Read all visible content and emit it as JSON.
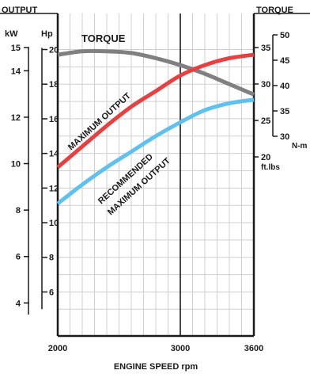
{
  "chart_data": {
    "type": "line",
    "title_left": "OUTPUT",
    "title_right": "TORQUE",
    "xlabel": "ENGINE SPEED  rpm",
    "xlim": [
      2000,
      3600
    ],
    "x_ticks": [
      "2000",
      "3000",
      "3600"
    ],
    "x_ticks_values": [
      2000,
      3000,
      3600
    ],
    "reference_line_x": 3000,
    "grid": true,
    "axes": {
      "kw": {
        "label": "kW",
        "range": [
          3.5,
          15
        ],
        "ticks": [
          "4",
          "6",
          "8",
          "10",
          "12",
          "14",
          "15"
        ],
        "tick_values": [
          4,
          6,
          8,
          10,
          12,
          14,
          15
        ]
      },
      "hp": {
        "label": "Hp",
        "range": [
          4.7,
          20.1
        ],
        "ticks": [
          "6",
          "8",
          "10",
          "12",
          "14",
          "16",
          "18",
          "20"
        ],
        "tick_values": [
          6,
          8,
          10,
          12,
          14,
          16,
          18,
          20
        ]
      },
      "nm": {
        "label": "N-m",
        "range": [
          28,
          51
        ],
        "ticks": [
          "30",
          "35",
          "40",
          "45",
          "50"
        ],
        "tick_values": [
          30,
          35,
          40,
          45,
          50
        ]
      },
      "ftlbs": {
        "label": "ft.lbs",
        "range": [
          20,
          37.5
        ],
        "ticks": [
          "20",
          "25",
          "30",
          "35"
        ],
        "tick_values": [
          20,
          25,
          30,
          35
        ]
      }
    },
    "series": [
      {
        "name": "TORQUE",
        "axis": "hp",
        "color": "#808080",
        "x": [
          2000,
          2200,
          2400,
          2600,
          2800,
          3000,
          3200,
          3400,
          3600
        ],
        "y": [
          19.7,
          19.9,
          19.9,
          19.8,
          19.5,
          19.1,
          18.6,
          18.0,
          17.4
        ]
      },
      {
        "name": "MAXIMUM OUTPUT",
        "axis": "hp",
        "color": "#e84040",
        "x": [
          2000,
          2200,
          2400,
          2600,
          2800,
          3000,
          3200,
          3400,
          3600
        ],
        "y": [
          13.2,
          14.4,
          15.6,
          16.7,
          17.6,
          18.5,
          19.1,
          19.5,
          19.7
        ]
      },
      {
        "name": "RECOMMENDED MAXIMUM OUTPUT",
        "axis": "hp",
        "color": "#60c0f0",
        "x": [
          2000,
          2200,
          2400,
          2600,
          2800,
          3000,
          3200,
          3400,
          3600
        ],
        "y": [
          11.1,
          12.2,
          13.2,
          14.1,
          15.0,
          15.8,
          16.5,
          16.9,
          17.1
        ]
      }
    ]
  }
}
